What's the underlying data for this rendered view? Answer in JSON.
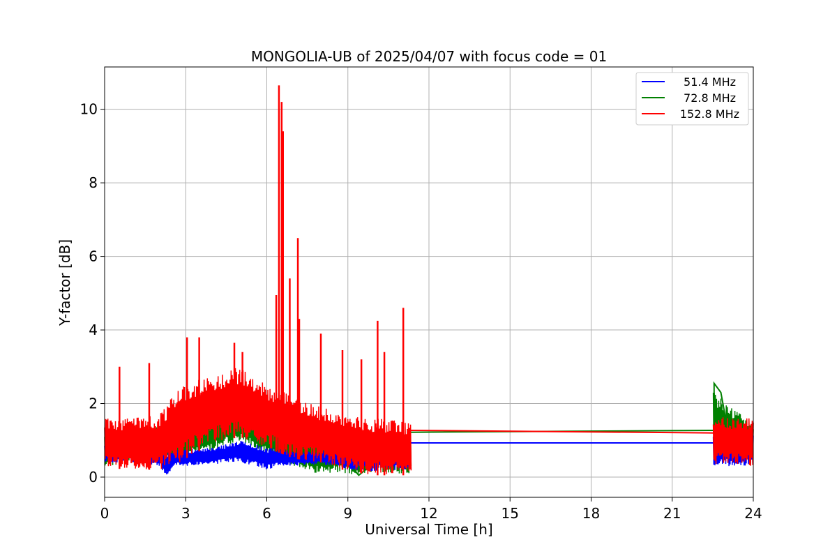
{
  "chart_data": {
    "type": "line",
    "title": "MONGOLIA-UB of 2025/04/07 with focus code = 01",
    "xlabel": "Universal Time [h]",
    "ylabel": "Y-factor [dB]",
    "xlim": [
      0,
      24
    ],
    "ylim": [
      -0.55,
      11.15
    ],
    "xticks": [
      0,
      3,
      6,
      9,
      12,
      15,
      18,
      21,
      24
    ],
    "xtick_labels": [
      "0",
      "3",
      "6",
      "9",
      "12",
      "15",
      "18",
      "21",
      "24"
    ],
    "yticks": [
      0,
      2,
      4,
      6,
      8,
      10
    ],
    "ytick_labels": [
      "0",
      "2",
      "4",
      "6",
      "8",
      "10"
    ],
    "grid": true,
    "legend_position": "top-right",
    "series": [
      {
        "name": "51.4 MHz",
        "color": "#0000ff",
        "points": [
          [
            0.0,
            0.7
          ],
          [
            0.5,
            0.85
          ],
          [
            1.0,
            0.75
          ],
          [
            1.5,
            0.7
          ],
          [
            2.0,
            0.55
          ],
          [
            2.3,
            0.1
          ],
          [
            2.6,
            0.45
          ],
          [
            3.0,
            0.55
          ],
          [
            3.5,
            0.6
          ],
          [
            4.0,
            0.55
          ],
          [
            4.5,
            0.6
          ],
          [
            5.0,
            0.8
          ],
          [
            5.5,
            0.65
          ],
          [
            6.0,
            0.5
          ],
          [
            6.5,
            0.5
          ],
          [
            7.0,
            0.45
          ],
          [
            7.5,
            0.5
          ],
          [
            7.9,
            0.6
          ],
          [
            8.5,
            0.55
          ],
          [
            9.0,
            0.5
          ],
          [
            9.5,
            0.45
          ],
          [
            10.0,
            0.45
          ],
          [
            10.5,
            0.5
          ],
          [
            11.0,
            0.5
          ],
          [
            11.3,
            0.5
          ],
          [
            11.3,
            0.93
          ],
          [
            22.55,
            0.93
          ],
          [
            22.55,
            0.7
          ],
          [
            23.0,
            0.8
          ],
          [
            23.5,
            0.75
          ],
          [
            24.0,
            0.8
          ]
        ],
        "band": [
          [
            0.0,
            0.35,
            1.0
          ],
          [
            1.0,
            0.4,
            1.0
          ],
          [
            2.0,
            0.3,
            0.85
          ],
          [
            2.3,
            0.0,
            0.7
          ],
          [
            2.6,
            0.3,
            0.75
          ],
          [
            3.0,
            0.3,
            0.75
          ],
          [
            4.0,
            0.35,
            0.8
          ],
          [
            5.0,
            0.4,
            1.0
          ],
          [
            6.0,
            0.2,
            0.8
          ],
          [
            6.5,
            0.3,
            0.8
          ],
          [
            7.0,
            0.3,
            0.7
          ],
          [
            7.9,
            0.35,
            0.7
          ],
          [
            9.0,
            0.2,
            0.8
          ],
          [
            10.0,
            0.15,
            0.85
          ],
          [
            11.3,
            0.2,
            0.85
          ],
          [
            22.55,
            0.3,
            1.1
          ],
          [
            24.0,
            0.3,
            1.15
          ]
        ]
      },
      {
        "name": "72.8 MHz",
        "color": "#008000",
        "points": [
          [
            0.0,
            0.9
          ],
          [
            1.0,
            0.9
          ],
          [
            2.0,
            1.0
          ],
          [
            3.0,
            1.0
          ],
          [
            4.0,
            1.3
          ],
          [
            4.5,
            1.4
          ],
          [
            5.0,
            1.75
          ],
          [
            5.5,
            1.3
          ],
          [
            6.0,
            1.1
          ],
          [
            6.5,
            0.9
          ],
          [
            7.0,
            0.7
          ],
          [
            7.5,
            0.6
          ],
          [
            8.0,
            0.6
          ],
          [
            9.0,
            0.4
          ],
          [
            9.4,
            0.05
          ],
          [
            10.0,
            0.4
          ],
          [
            11.3,
            0.6
          ],
          [
            11.3,
            1.22
          ],
          [
            22.55,
            1.27
          ],
          [
            22.55,
            2.55
          ],
          [
            22.8,
            2.3
          ],
          [
            23.0,
            1.5
          ],
          [
            24.0,
            1.2
          ]
        ],
        "band": [
          [
            0.0,
            0.3,
            1.3
          ],
          [
            2.0,
            0.4,
            1.4
          ],
          [
            3.0,
            0.5,
            1.6
          ],
          [
            4.0,
            0.7,
            1.8
          ],
          [
            5.0,
            1.0,
            1.85
          ],
          [
            6.0,
            0.6,
            1.6
          ],
          [
            7.0,
            0.3,
            1.2
          ],
          [
            7.7,
            0.1,
            1.0
          ],
          [
            9.0,
            0.1,
            1.1
          ],
          [
            9.4,
            0.0,
            0.9
          ],
          [
            10.0,
            0.1,
            1.2
          ],
          [
            11.3,
            0.1,
            1.2
          ],
          [
            22.55,
            0.4,
            2.5
          ],
          [
            23.0,
            0.5,
            2.0
          ],
          [
            24.0,
            0.4,
            1.5
          ]
        ]
      },
      {
        "name": "152.8 MHz",
        "color": "#ff0000",
        "band": [
          [
            0.0,
            0.25,
            1.6
          ],
          [
            1.0,
            0.2,
            1.6
          ],
          [
            2.0,
            0.2,
            1.7
          ],
          [
            2.5,
            0.25,
            2.2
          ],
          [
            3.0,
            0.5,
            2.6
          ],
          [
            4.0,
            0.9,
            2.8
          ],
          [
            5.0,
            1.1,
            3.0
          ],
          [
            6.0,
            0.8,
            2.5
          ],
          [
            7.0,
            0.5,
            2.2
          ],
          [
            8.0,
            0.4,
            1.9
          ],
          [
            9.0,
            0.15,
            1.7
          ],
          [
            10.0,
            0.05,
            1.6
          ],
          [
            11.3,
            0.05,
            1.5
          ],
          [
            22.55,
            0.3,
            1.7
          ],
          [
            23.5,
            0.35,
            1.6
          ],
          [
            24.0,
            0.25,
            1.6
          ]
        ],
        "flat": [
          [
            11.3,
            1.27
          ],
          [
            22.55,
            1.2
          ]
        ],
        "spikes": [
          [
            0.55,
            3.0
          ],
          [
            1.65,
            3.1
          ],
          [
            3.05,
            3.8
          ],
          [
            3.5,
            3.8
          ],
          [
            4.8,
            3.65
          ],
          [
            5.1,
            3.4
          ],
          [
            6.35,
            4.95
          ],
          [
            6.45,
            10.65
          ],
          [
            6.55,
            10.2
          ],
          [
            6.6,
            9.4
          ],
          [
            6.85,
            5.4
          ],
          [
            7.15,
            6.5
          ],
          [
            7.2,
            4.3
          ],
          [
            8.0,
            3.9
          ],
          [
            8.8,
            3.45
          ],
          [
            9.5,
            3.2
          ],
          [
            10.1,
            4.25
          ],
          [
            10.35,
            3.4
          ],
          [
            11.05,
            4.6
          ]
        ]
      }
    ]
  }
}
